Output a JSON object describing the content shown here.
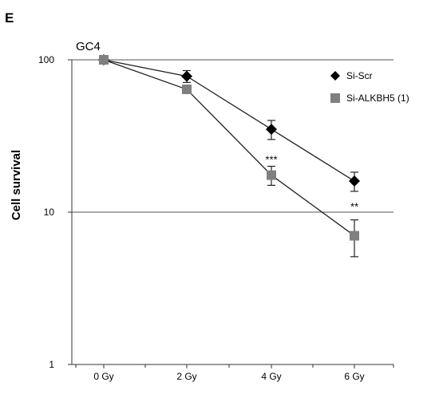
{
  "panel_label": "E",
  "chart_data": {
    "type": "line",
    "title": "GC4",
    "xlabel": "",
    "ylabel": "Cell survival",
    "y_scale": "log",
    "ylim": [
      1,
      100
    ],
    "y_ticks": [
      "1",
      "10",
      "100"
    ],
    "categories": [
      "0 Gy",
      "2 Gy",
      "4 Gy",
      "6 Gy"
    ],
    "grid": "horizontal at decades",
    "legend_position": "top-right",
    "series": [
      {
        "name": "Si-Scr",
        "marker": "diamond",
        "color": "#000000",
        "values": [
          100,
          78,
          35,
          16
        ],
        "errors": [
          2,
          7,
          5,
          2.3
        ]
      },
      {
        "name": "Si-ALKBH5 (1)",
        "marker": "square",
        "color": "#808080",
        "values": [
          100,
          64,
          17.5,
          7
        ],
        "errors": [
          2,
          3,
          2.5,
          1.9
        ]
      }
    ],
    "annotations": [
      {
        "category": "4 Gy",
        "value": 22,
        "text": "***"
      },
      {
        "category": "6 Gy",
        "value": 10.8,
        "text": "**"
      }
    ]
  }
}
